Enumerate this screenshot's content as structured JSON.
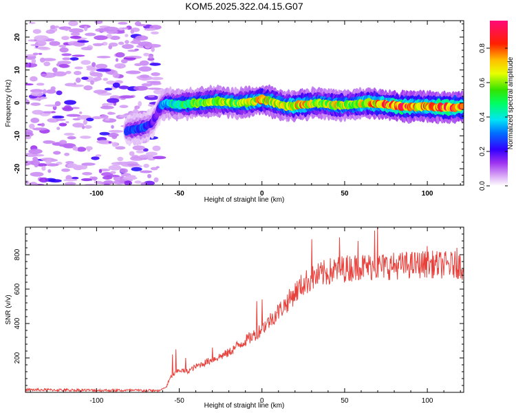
{
  "title": "KOM5.2025.322.04.15.G07",
  "chart_data": [
    {
      "type": "heatmap",
      "name": "spectrogram",
      "xlabel": "Height of straight line (km)",
      "ylabel": "Frequency (Hz)",
      "xlim": [
        -143,
        122
      ],
      "ylim": [
        -25,
        25
      ],
      "xticks": [
        -100,
        -50,
        0,
        50,
        100
      ],
      "xtick_labels": [
        "-100",
        "-50",
        "0",
        "50",
        "100"
      ],
      "yticks": [
        -20,
        -10,
        0,
        10,
        20
      ],
      "ytick_labels": [
        "-20",
        "-10",
        "0",
        "10",
        "20"
      ],
      "ridge": {
        "description": "dominant frequency track",
        "x": [
          -82,
          -72,
          -66,
          -63,
          -61,
          -58,
          -52,
          -45,
          -35,
          -25,
          -15,
          -5,
          0,
          5,
          15,
          25,
          35,
          45,
          55,
          65,
          75,
          85,
          95,
          105,
          115,
          122
        ],
        "y": [
          -8.5,
          -7.5,
          -6,
          -3,
          -1,
          0,
          -0.5,
          -0.3,
          0.2,
          0.5,
          -0.2,
          0.5,
          1,
          0.5,
          -1,
          -0.5,
          0,
          -0.8,
          -0.5,
          0,
          -0.5,
          -1.2,
          -1,
          -1.2,
          -1.4,
          -1.3
        ],
        "amplitude": [
          0.25,
          0.3,
          0.2,
          0.15,
          0.3,
          0.4,
          0.5,
          0.55,
          0.6,
          0.65,
          0.6,
          0.7,
          0.75,
          0.7,
          0.65,
          0.8,
          0.6,
          0.7,
          0.65,
          0.75,
          0.85,
          0.9,
          0.8,
          0.85,
          0.9,
          0.85
        ]
      },
      "noise_region_xlim": [
        -143,
        -62
      ]
    },
    {
      "type": "colorbar",
      "name": "amplitude-colorbar",
      "label": "Normalized spectral amplitude",
      "range": [
        0,
        0.96
      ],
      "ticks": [
        0,
        0.2,
        0.4,
        0.6,
        0.8
      ],
      "tick_labels": [
        "0.0",
        "0.2",
        "0.4",
        "0.6",
        "0.8"
      ]
    },
    {
      "type": "line",
      "name": "snr",
      "xlabel": "Height of straight line (km)",
      "ylabel": "SNR (v/v)",
      "xlim": [
        -143,
        122
      ],
      "ylim": [
        0,
        960
      ],
      "xticks": [
        -100,
        -50,
        0,
        50,
        100
      ],
      "xtick_labels": [
        "-100",
        "-50",
        "0",
        "50",
        "100"
      ],
      "yticks": [
        200,
        400,
        600,
        800
      ],
      "ytick_labels": [
        "200",
        "400",
        "600",
        "800"
      ],
      "color": "#e8413c",
      "trend": {
        "x": [
          -143,
          -100,
          -62,
          -58,
          -55,
          -50,
          -45,
          -40,
          -35,
          -30,
          -25,
          -20,
          -15,
          -10,
          -5,
          0,
          5,
          10,
          15,
          20,
          25,
          30,
          40,
          50,
          60,
          70,
          80,
          90,
          100,
          110,
          120,
          122
        ],
        "y": [
          15,
          12,
          10,
          30,
          90,
          130,
          120,
          150,
          170,
          190,
          210,
          230,
          270,
          300,
          330,
          370,
          420,
          470,
          520,
          580,
          630,
          660,
          700,
          720,
          730,
          730,
          735,
          740,
          745,
          740,
          740,
          720
        ]
      },
      "peaks": [
        {
          "x": -54,
          "y": 220
        },
        {
          "x": -52,
          "y": 250
        },
        {
          "x": -46,
          "y": 200
        },
        {
          "x": -30,
          "y": 260
        },
        {
          "x": 0,
          "y": 540
        },
        {
          "x": -3,
          "y": 530
        },
        {
          "x": 30,
          "y": 890
        },
        {
          "x": 47,
          "y": 900
        },
        {
          "x": 58,
          "y": 880
        },
        {
          "x": 70,
          "y": 960
        },
        {
          "x": 68,
          "y": 940
        },
        {
          "x": 100,
          "y": 850
        },
        {
          "x": 118,
          "y": 840
        }
      ],
      "noise_amplitude": 45
    }
  ]
}
